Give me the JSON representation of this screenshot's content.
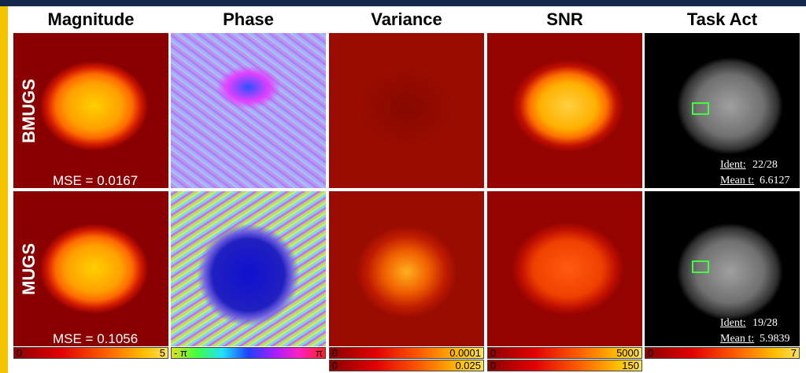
{
  "header": {
    "columns": [
      "Magnitude",
      "Phase",
      "Variance",
      "SNR",
      "Task Act"
    ]
  },
  "rows": [
    {
      "label": "BMUGS",
      "mse": "MSE = 0.0167",
      "ident_label": "Ident:",
      "ident_value": "22/28",
      "mean_label": "Mean t:",
      "mean_value": "6.6127"
    },
    {
      "label": "MUGS",
      "mse": "MSE = 0.1056",
      "ident_label": "Ident:",
      "ident_value": "19/28",
      "mean_label": "Mean t:",
      "mean_value": "5.9839"
    }
  ],
  "colorbars": [
    {
      "min": "0",
      "max": "5"
    },
    {
      "min": "- π",
      "max": "π"
    },
    {
      "min": "0",
      "max": "0.0001"
    },
    {
      "min": "0",
      "max": "0.025"
    },
    {
      "min": "0",
      "max": "5000"
    },
    {
      "min": "0",
      "max": "150"
    },
    {
      "min": "0",
      "max": "7"
    }
  ]
}
